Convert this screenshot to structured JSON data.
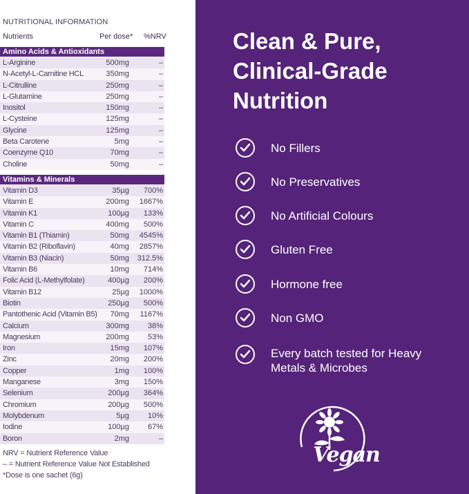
{
  "nutrition": {
    "title": "NUTRITIONAL INFORMATION",
    "headers": {
      "nutrient": "Nutrients",
      "dose": "Per dose*",
      "nrv": "%NRV"
    },
    "sections": [
      {
        "name": "Amino Acids & Antioxidants",
        "rows": [
          {
            "name": "L-Arginine",
            "dose": "500mg",
            "nrv": "–"
          },
          {
            "name": "N-Acetyl-L-Carnitine HCL",
            "dose": "350mg",
            "nrv": "–"
          },
          {
            "name": "L-Citrulline",
            "dose": "250mg",
            "nrv": "–"
          },
          {
            "name": "L-Glutamine",
            "dose": "250mg",
            "nrv": "–"
          },
          {
            "name": "Inositol",
            "dose": "150mg",
            "nrv": "–"
          },
          {
            "name": "L-Cysteine",
            "dose": "125mg",
            "nrv": "–"
          },
          {
            "name": "Glycine",
            "dose": "125mg",
            "nrv": "–"
          },
          {
            "name": "Beta Carotene",
            "dose": "5mg",
            "nrv": "–"
          },
          {
            "name": "Coenzyme Q10",
            "dose": "70mg",
            "nrv": "–"
          },
          {
            "name": "Choline",
            "dose": "50mg",
            "nrv": "–"
          }
        ]
      },
      {
        "name": "Vitamins & Minerals",
        "rows": [
          {
            "name": "Vitamin D3",
            "dose": "35µg",
            "nrv": "700%"
          },
          {
            "name": "Vitamin E",
            "dose": "200mg",
            "nrv": "1667%"
          },
          {
            "name": "Vitamin K1",
            "dose": "100µg",
            "nrv": "133%"
          },
          {
            "name": "Vitamin C",
            "dose": "400mg",
            "nrv": "500%"
          },
          {
            "name": "Vitamin B1 (Thiamin)",
            "dose": "50mg",
            "nrv": "4545%"
          },
          {
            "name": "Vitamin B2 (Riboflavin)",
            "dose": "40mg",
            "nrv": "2857%"
          },
          {
            "name": "Vitamin B3 (Niacin)",
            "dose": "50mg",
            "nrv": "312.5%"
          },
          {
            "name": "Vitamin B6",
            "dose": "10mg",
            "nrv": "714%"
          },
          {
            "name": "Folic Acid (L-Methylfolate)",
            "dose": "400µg",
            "nrv": "200%"
          },
          {
            "name": "Vitamin B12",
            "dose": "25µg",
            "nrv": "1000%"
          },
          {
            "name": "Biotin",
            "dose": "250µg",
            "nrv": "500%"
          },
          {
            "name": "Pantothenic Acid (Vitamin B5)",
            "dose": "70mg",
            "nrv": "1167%"
          },
          {
            "name": "Calcium",
            "dose": "300mg",
            "nrv": "38%"
          },
          {
            "name": "Magnesium",
            "dose": "200mg",
            "nrv": "53%"
          },
          {
            "name": "Iron",
            "dose": "15mg",
            "nrv": "107%"
          },
          {
            "name": "Zinc",
            "dose": "20mg",
            "nrv": "200%"
          },
          {
            "name": "Copper",
            "dose": "1mg",
            "nrv": "100%"
          },
          {
            "name": "Manganese",
            "dose": "3mg",
            "nrv": "150%"
          },
          {
            "name": "Selenium",
            "dose": "200µg",
            "nrv": "364%"
          },
          {
            "name": "Chromium",
            "dose": "200µg",
            "nrv": "500%"
          },
          {
            "name": "Molybdenum",
            "dose": "5µg",
            "nrv": "10%"
          },
          {
            "name": "Iodine",
            "dose": "100µg",
            "nrv": "67%"
          },
          {
            "name": "Boron",
            "dose": "2mg",
            "nrv": "–"
          }
        ]
      }
    ],
    "footnotes": [
      "NRV = Nutrient Reference Value",
      "– = Nutrient Reference Value Not Established",
      "*Dose is one sachet (6g)"
    ]
  },
  "promo": {
    "headline": [
      "Clean & Pure,",
      "Clinical-Grade",
      "Nutrition"
    ],
    "features": [
      {
        "icon": "check-circle-icon",
        "label": "No Fillers"
      },
      {
        "icon": "check-circle-icon",
        "label": "No Preservatives"
      },
      {
        "icon": "check-circle-icon",
        "label": "No Artificial Colours"
      },
      {
        "icon": "check-circle-icon",
        "label": "Gluten Free"
      },
      {
        "icon": "check-circle-icon",
        "label": "Hormone free"
      },
      {
        "icon": "check-circle-icon",
        "label": "Non GMO"
      },
      {
        "icon": "check-circle-icon",
        "label": "Every batch tested for Heavy Metals & Microbes"
      }
    ],
    "logo": {
      "icon": "vegan-sunflower-logo-icon",
      "text": "Vegan"
    }
  },
  "colors": {
    "brand_purple": "#55237a",
    "section_header": "#5a287e",
    "row_stripe": "#ebe3f0"
  }
}
